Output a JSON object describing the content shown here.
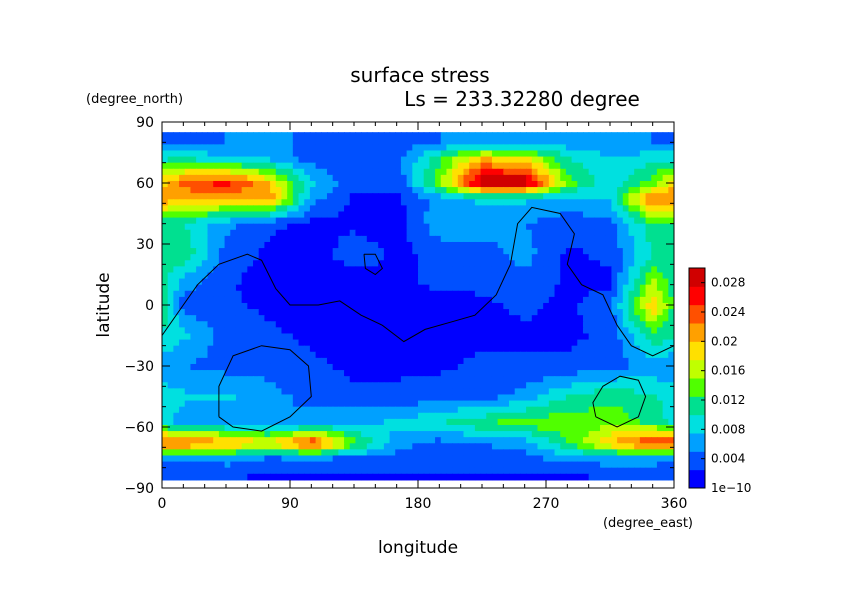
{
  "chart_data": {
    "type": "heatmap",
    "title": "surface stress",
    "subtitle": "Ls = 233.32280 degree",
    "xlabel": "longitude",
    "ylabel": "latitude",
    "x_units": "(degree_east)",
    "y_units": "(degree_north)",
    "xlim": [
      0,
      360
    ],
    "ylim": [
      -90,
      90
    ],
    "x_ticks": [
      {
        "value": 0,
        "label": "0"
      },
      {
        "value": 90,
        "label": "90"
      },
      {
        "value": 180,
        "label": "180"
      },
      {
        "value": 270,
        "label": "270"
      },
      {
        "value": 360,
        "label": "360"
      }
    ],
    "y_ticks": [
      {
        "value": 90,
        "label": "90"
      },
      {
        "value": 60,
        "label": "60"
      },
      {
        "value": 30,
        "label": "30"
      },
      {
        "value": 0,
        "label": "0"
      },
      {
        "value": -30,
        "label": "−30"
      },
      {
        "value": -60,
        "label": "−60"
      },
      {
        "value": -90,
        "label": "−90"
      }
    ],
    "colorbar": {
      "min": 0,
      "max": 0.03,
      "labels": [
        {
          "value": 0,
          "label": "1e−10"
        },
        {
          "value": 0.004,
          "label": "0.004"
        },
        {
          "value": 0.008,
          "label": "0.008"
        },
        {
          "value": 0.012,
          "label": "0.012"
        },
        {
          "value": 0.016,
          "label": "0.016"
        },
        {
          "value": 0.02,
          "label": "0.02"
        },
        {
          "value": 0.024,
          "label": "0.024"
        },
        {
          "value": 0.028,
          "label": "0.028"
        }
      ],
      "colors": [
        "#0000ff",
        "#0050ff",
        "#00a0ff",
        "#00e0e0",
        "#00e090",
        "#50ff00",
        "#c0ff00",
        "#ffe000",
        "#ffa000",
        "#ff5000",
        "#ff0000",
        "#d00000"
      ]
    },
    "lat_bands": [
      {
        "lat": 80,
        "values": [
          0.004,
          0.005,
          0.006,
          0.004,
          0.004,
          0.004,
          0.005,
          0.005,
          0.006,
          0.006,
          0.005,
          0.005
        ]
      },
      {
        "lat": 72,
        "values": [
          0.01,
          0.008,
          0.007,
          0.004,
          0.003,
          0.004,
          0.012,
          0.02,
          0.018,
          0.01,
          0.008,
          0.009
        ]
      },
      {
        "lat": 60,
        "values": [
          0.024,
          0.026,
          0.02,
          0.008,
          0.003,
          0.003,
          0.014,
          0.03,
          0.03,
          0.014,
          0.008,
          0.014
        ]
      },
      {
        "lat": 52,
        "values": [
          0.02,
          0.02,
          0.022,
          0.006,
          0.002,
          0.002,
          0.006,
          0.008,
          0.008,
          0.006,
          0.008,
          0.024
        ]
      },
      {
        "lat": 40,
        "values": [
          0.01,
          0.006,
          0.003,
          0.002,
          0.002,
          0.001,
          0.007,
          0.006,
          0.005,
          0.004,
          0.004,
          0.012
        ]
      },
      {
        "lat": 25,
        "values": [
          0.012,
          0.004,
          0.002,
          0.001,
          0.004,
          0.002,
          0.003,
          0.004,
          0.006,
          0.002,
          0.003,
          0.01
        ]
      },
      {
        "lat": 10,
        "values": [
          0.006,
          0.003,
          0.001,
          0.001,
          0.001,
          0.002,
          0.003,
          0.003,
          0.004,
          0.002,
          0.002,
          0.016
        ]
      },
      {
        "lat": 0,
        "values": [
          0.004,
          0.003,
          0.002,
          0.001,
          0.001,
          0.001,
          0.001,
          0.002,
          0.003,
          0.002,
          0.004,
          0.02
        ]
      },
      {
        "lat": -15,
        "values": [
          0.008,
          0.004,
          0.003,
          0.002,
          0.001,
          0.001,
          0.002,
          0.002,
          0.002,
          0.002,
          0.003,
          0.012
        ]
      },
      {
        "lat": -30,
        "values": [
          0.005,
          0.004,
          0.004,
          0.003,
          0.002,
          0.002,
          0.002,
          0.003,
          0.003,
          0.003,
          0.004,
          0.006
        ]
      },
      {
        "lat": -45,
        "values": [
          0.008,
          0.008,
          0.006,
          0.004,
          0.003,
          0.003,
          0.004,
          0.004,
          0.006,
          0.01,
          0.012,
          0.01
        ]
      },
      {
        "lat": -58,
        "values": [
          0.006,
          0.006,
          0.005,
          0.006,
          0.007,
          0.008,
          0.01,
          0.012,
          0.014,
          0.014,
          0.014,
          0.012
        ]
      },
      {
        "lat": -68,
        "values": [
          0.024,
          0.022,
          0.018,
          0.026,
          0.014,
          0.006,
          0.004,
          0.005,
          0.006,
          0.012,
          0.02,
          0.026
        ]
      },
      {
        "lat": -76,
        "values": [
          0.004,
          0.006,
          0.004,
          0.004,
          0.004,
          0.004,
          0.004,
          0.004,
          0.004,
          0.006,
          0.006,
          0.006
        ]
      },
      {
        "lat": -84,
        "values": [
          0.003,
          0.003,
          0.002,
          0.002,
          0.002,
          0.002,
          0.002,
          0.002,
          0.002,
          0.002,
          0.003,
          0.003
        ]
      }
    ],
    "contours": [
      {
        "name": "topography-contour-main",
        "points": [
          [
            0,
            -15
          ],
          [
            15,
            0
          ],
          [
            25,
            10
          ],
          [
            40,
            20
          ],
          [
            60,
            25
          ],
          [
            70,
            22
          ],
          [
            80,
            8
          ],
          [
            90,
            0
          ],
          [
            110,
            0
          ],
          [
            125,
            2
          ],
          [
            140,
            -5
          ],
          [
            155,
            -10
          ],
          [
            170,
            -18
          ],
          [
            185,
            -12
          ],
          [
            205,
            -8
          ],
          [
            220,
            -5
          ],
          [
            235,
            5
          ],
          [
            245,
            20
          ],
          [
            250,
            40
          ],
          [
            260,
            48
          ],
          [
            280,
            45
          ],
          [
            290,
            35
          ],
          [
            285,
            20
          ],
          [
            295,
            10
          ],
          [
            310,
            5
          ],
          [
            320,
            -10
          ],
          [
            330,
            -20
          ],
          [
            345,
            -25
          ],
          [
            360,
            -20
          ]
        ]
      },
      {
        "name": "topography-contour-hellas",
        "points": [
          [
            40,
            -55
          ],
          [
            50,
            -60
          ],
          [
            70,
            -62
          ],
          [
            90,
            -55
          ],
          [
            105,
            -45
          ],
          [
            103,
            -30
          ],
          [
            90,
            -22
          ],
          [
            70,
            -20
          ],
          [
            50,
            -25
          ],
          [
            40,
            -40
          ],
          [
            40,
            -55
          ]
        ]
      },
      {
        "name": "topography-contour-argyre",
        "points": [
          [
            305,
            -55
          ],
          [
            320,
            -60
          ],
          [
            335,
            -55
          ],
          [
            340,
            -45
          ],
          [
            335,
            -37
          ],
          [
            322,
            -35
          ],
          [
            310,
            -40
          ],
          [
            303,
            -48
          ],
          [
            305,
            -55
          ]
        ]
      },
      {
        "name": "topography-contour-elysium",
        "points": [
          [
            142,
            25
          ],
          [
            150,
            25
          ],
          [
            155,
            18
          ],
          [
            150,
            15
          ],
          [
            143,
            18
          ],
          [
            142,
            25
          ]
        ]
      }
    ]
  }
}
